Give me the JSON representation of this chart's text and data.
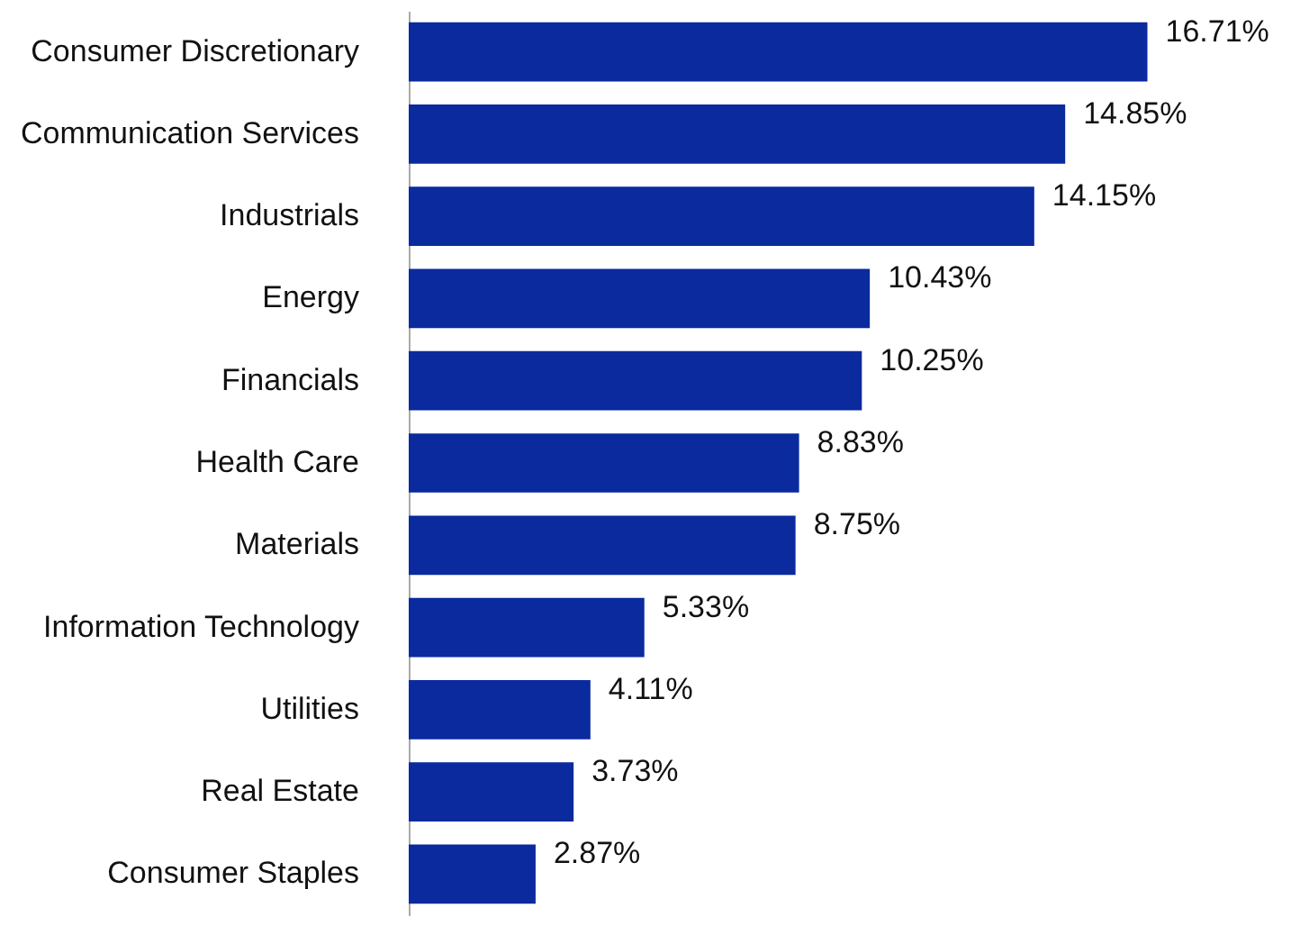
{
  "chart_data": {
    "type": "bar",
    "orientation": "horizontal",
    "categories": [
      "Consumer Discretionary",
      "Communication Services",
      "Industrials",
      "Energy",
      "Financials",
      "Health Care",
      "Materials",
      "Information Technology",
      "Utilities",
      "Real Estate",
      "Consumer Staples"
    ],
    "values": [
      16.71,
      14.85,
      14.15,
      10.43,
      10.25,
      8.83,
      8.75,
      5.33,
      4.11,
      3.73,
      2.87
    ],
    "value_labels": [
      "16.71%",
      "14.85%",
      "14.15%",
      "10.43%",
      "10.25%",
      "8.83%",
      "8.75%",
      "5.33%",
      "4.11%",
      "3.73%",
      "2.87%"
    ],
    "color": "#0a2a9e"
  }
}
